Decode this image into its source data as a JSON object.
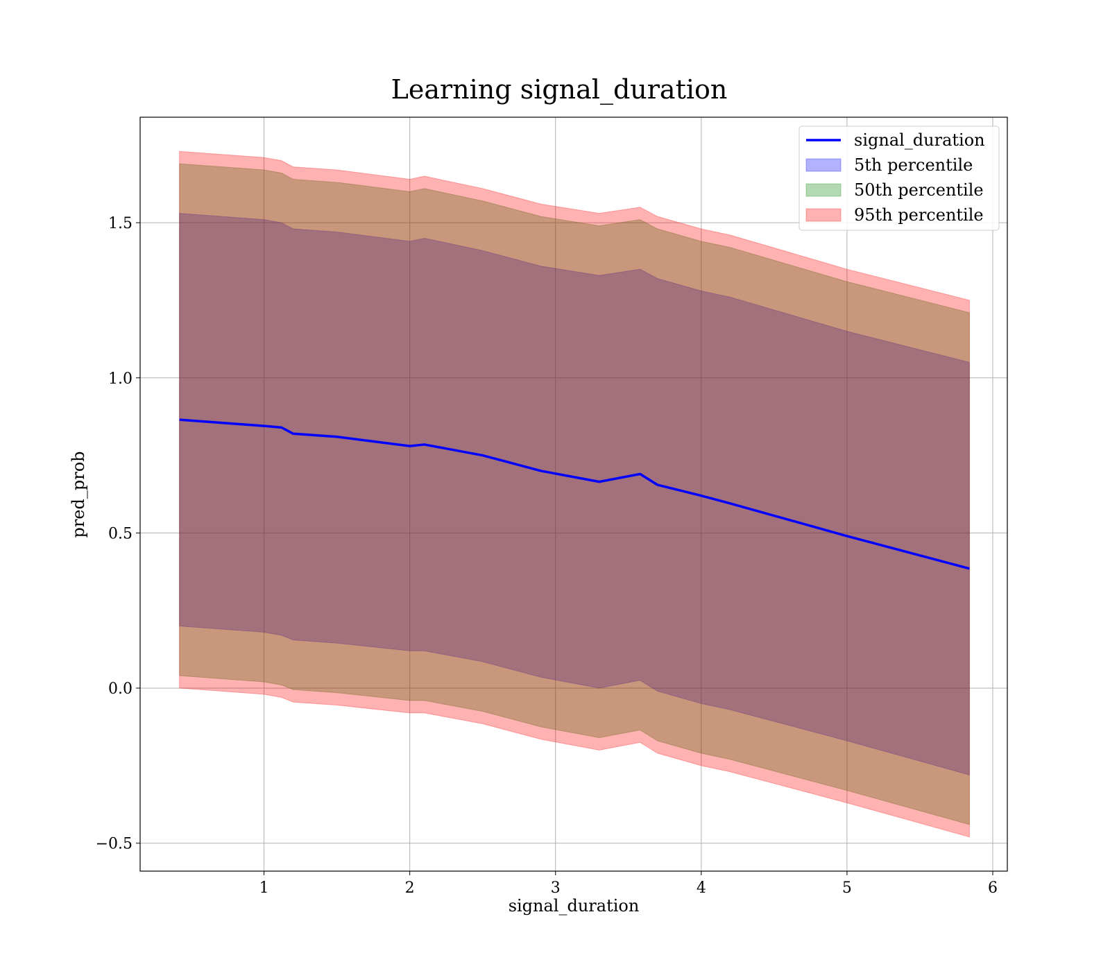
{
  "chart_data": {
    "type": "area",
    "title": "Learning signal_duration",
    "xlabel": "signal_duration",
    "ylabel": "pred_prob",
    "xlim": [
      0.15,
      6.1
    ],
    "ylim": [
      -0.59,
      1.84
    ],
    "xticks": [
      {
        "value": 1,
        "label": "1"
      },
      {
        "value": 2,
        "label": "2"
      },
      {
        "value": 3,
        "label": "3"
      },
      {
        "value": 4,
        "label": "4"
      },
      {
        "value": 5,
        "label": "5"
      },
      {
        "value": 6,
        "label": "6"
      }
    ],
    "yticks": [
      {
        "value": -0.5,
        "label": "−0.5"
      },
      {
        "value": 0.0,
        "label": "0.0"
      },
      {
        "value": 0.5,
        "label": "0.5"
      },
      {
        "value": 1.0,
        "label": "1.0"
      },
      {
        "value": 1.5,
        "label": "1.5"
      }
    ],
    "grid": true,
    "legend_position": "top-right",
    "x": [
      0.42,
      1.0,
      1.12,
      1.2,
      1.5,
      2.0,
      2.1,
      2.5,
      2.9,
      3.3,
      3.58,
      3.7,
      4.0,
      4.2,
      5.0,
      5.84
    ],
    "series": [
      {
        "name": "signal_duration",
        "kind": "line",
        "color": "#0000ff",
        "values": [
          0.865,
          0.845,
          0.84,
          0.82,
          0.81,
          0.78,
          0.785,
          0.75,
          0.7,
          0.665,
          0.69,
          0.655,
          0.62,
          0.595,
          0.49,
          0.385
        ]
      },
      {
        "name": "5th percentile",
        "kind": "band",
        "color": "#0000ff",
        "lower": [
          0.2,
          0.18,
          0.17,
          0.155,
          0.145,
          0.12,
          0.12,
          0.085,
          0.035,
          0.0,
          0.025,
          -0.01,
          -0.05,
          -0.07,
          -0.17,
          -0.28
        ],
        "upper": [
          1.53,
          1.51,
          1.5,
          1.48,
          1.47,
          1.44,
          1.45,
          1.41,
          1.36,
          1.33,
          1.35,
          1.32,
          1.28,
          1.26,
          1.15,
          1.05
        ]
      },
      {
        "name": "50th percentile",
        "kind": "band",
        "color": "#008000",
        "lower": [
          0.04,
          0.02,
          0.01,
          -0.005,
          -0.015,
          -0.04,
          -0.04,
          -0.075,
          -0.125,
          -0.16,
          -0.135,
          -0.17,
          -0.21,
          -0.23,
          -0.33,
          -0.44
        ],
        "upper": [
          1.69,
          1.67,
          1.66,
          1.64,
          1.63,
          1.6,
          1.61,
          1.57,
          1.52,
          1.49,
          1.51,
          1.48,
          1.44,
          1.42,
          1.31,
          1.21
        ]
      },
      {
        "name": "95th percentile",
        "kind": "band",
        "color": "#ff0000",
        "lower": [
          0.0,
          -0.02,
          -0.03,
          -0.045,
          -0.055,
          -0.08,
          -0.08,
          -0.115,
          -0.165,
          -0.2,
          -0.175,
          -0.21,
          -0.25,
          -0.27,
          -0.37,
          -0.48
        ],
        "upper": [
          1.73,
          1.71,
          1.7,
          1.68,
          1.67,
          1.64,
          1.65,
          1.61,
          1.56,
          1.53,
          1.55,
          1.52,
          1.48,
          1.46,
          1.35,
          1.25
        ]
      }
    ]
  }
}
